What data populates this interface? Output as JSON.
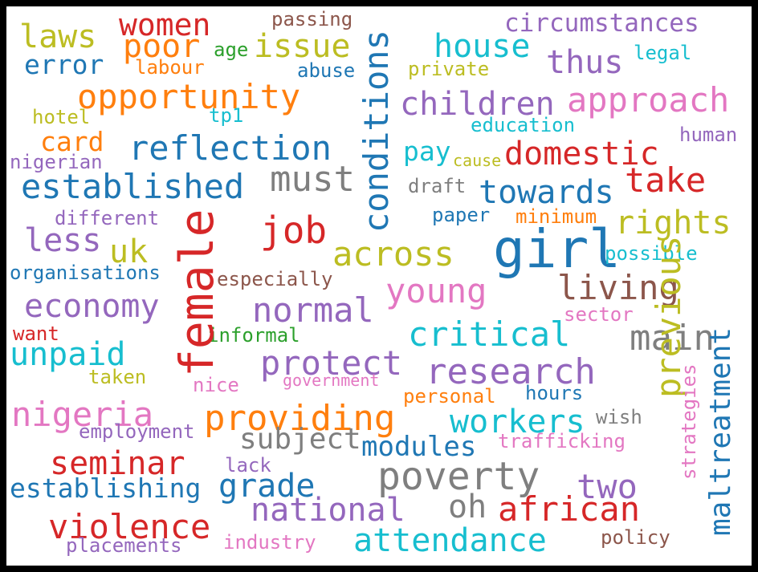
{
  "palette": {
    "blue": "#1f77b4",
    "orange": "#ff7f0e",
    "green": "#2ca02c",
    "red": "#d62728",
    "purple": "#9467bd",
    "brown": "#8c564b",
    "pink": "#e377c2",
    "gray": "#7f7f7f",
    "olive": "#bcbd22",
    "cyan": "#17becf"
  },
  "words": [
    {
      "text": "women",
      "color": "red"
    },
    {
      "text": "passing",
      "color": "brown"
    },
    {
      "text": "circumstances",
      "color": "purple"
    },
    {
      "text": "laws",
      "color": "olive"
    },
    {
      "text": "poor",
      "color": "orange"
    },
    {
      "text": "issue",
      "color": "olive"
    },
    {
      "text": "age",
      "color": "green"
    },
    {
      "text": "house",
      "color": "cyan"
    },
    {
      "text": "legal",
      "color": "cyan"
    },
    {
      "text": "error",
      "color": "blue"
    },
    {
      "text": "labour",
      "color": "orange"
    },
    {
      "text": "abuse",
      "color": "blue"
    },
    {
      "text": "private",
      "color": "olive"
    },
    {
      "text": "thus",
      "color": "purple"
    },
    {
      "text": "opportunity",
      "color": "orange"
    },
    {
      "text": "children",
      "color": "purple"
    },
    {
      "text": "approach",
      "color": "pink"
    },
    {
      "text": "hotel",
      "color": "olive"
    },
    {
      "text": "tp1",
      "color": "cyan"
    },
    {
      "text": "education",
      "color": "cyan"
    },
    {
      "text": "human",
      "color": "purple"
    },
    {
      "text": "card",
      "color": "orange"
    },
    {
      "text": "reflection",
      "color": "blue"
    },
    {
      "text": "pay",
      "color": "cyan"
    },
    {
      "text": "cause",
      "color": "olive"
    },
    {
      "text": "domestic",
      "color": "red"
    },
    {
      "text": "nigerian",
      "color": "purple"
    },
    {
      "text": "established",
      "color": "blue"
    },
    {
      "text": "must",
      "color": "gray"
    },
    {
      "text": "draft",
      "color": "gray"
    },
    {
      "text": "towards",
      "color": "blue"
    },
    {
      "text": "take",
      "color": "red"
    },
    {
      "text": "different",
      "color": "purple"
    },
    {
      "text": "job",
      "color": "red"
    },
    {
      "text": "paper",
      "color": "blue"
    },
    {
      "text": "minimum",
      "color": "orange"
    },
    {
      "text": "rights",
      "color": "olive"
    },
    {
      "text": "less",
      "color": "purple"
    },
    {
      "text": "uk",
      "color": "olive"
    },
    {
      "text": "across",
      "color": "olive"
    },
    {
      "text": "girl",
      "color": "blue"
    },
    {
      "text": "possible",
      "color": "cyan"
    },
    {
      "text": "organisations",
      "color": "blue"
    },
    {
      "text": "especially",
      "color": "brown"
    },
    {
      "text": "young",
      "color": "pink"
    },
    {
      "text": "living",
      "color": "brown"
    },
    {
      "text": "economy",
      "color": "purple"
    },
    {
      "text": "normal",
      "color": "purple"
    },
    {
      "text": "sector",
      "color": "pink"
    },
    {
      "text": "want",
      "color": "red"
    },
    {
      "text": "informal",
      "color": "green"
    },
    {
      "text": "critical",
      "color": "cyan"
    },
    {
      "text": "main",
      "color": "gray"
    },
    {
      "text": "unpaid",
      "color": "cyan"
    },
    {
      "text": "protect",
      "color": "purple"
    },
    {
      "text": "research",
      "color": "purple"
    },
    {
      "text": "taken",
      "color": "olive"
    },
    {
      "text": "nice",
      "color": "pink"
    },
    {
      "text": "government",
      "color": "pink"
    },
    {
      "text": "hours",
      "color": "blue"
    },
    {
      "text": "personal",
      "color": "orange"
    },
    {
      "text": "nigeria",
      "color": "pink"
    },
    {
      "text": "providing",
      "color": "orange"
    },
    {
      "text": "workers",
      "color": "cyan"
    },
    {
      "text": "wish",
      "color": "gray"
    },
    {
      "text": "employment",
      "color": "purple"
    },
    {
      "text": "subject",
      "color": "gray"
    },
    {
      "text": "modules",
      "color": "blue"
    },
    {
      "text": "trafficking",
      "color": "pink"
    },
    {
      "text": "seminar",
      "color": "red"
    },
    {
      "text": "lack",
      "color": "purple"
    },
    {
      "text": "poverty",
      "color": "gray"
    },
    {
      "text": "establishing",
      "color": "blue"
    },
    {
      "text": "grade",
      "color": "blue"
    },
    {
      "text": "two",
      "color": "purple"
    },
    {
      "text": "national",
      "color": "purple"
    },
    {
      "text": "oh",
      "color": "gray"
    },
    {
      "text": "african",
      "color": "red"
    },
    {
      "text": "violence",
      "color": "red"
    },
    {
      "text": "attendance",
      "color": "cyan"
    },
    {
      "text": "policy",
      "color": "brown"
    },
    {
      "text": "placements",
      "color": "purple"
    },
    {
      "text": "industry",
      "color": "pink"
    },
    {
      "text": "conditions",
      "color": "blue"
    },
    {
      "text": "female",
      "color": "red"
    },
    {
      "text": "previous",
      "color": "olive"
    },
    {
      "text": "maltreatment",
      "color": "blue"
    },
    {
      "text": "strategies",
      "color": "pink"
    }
  ]
}
